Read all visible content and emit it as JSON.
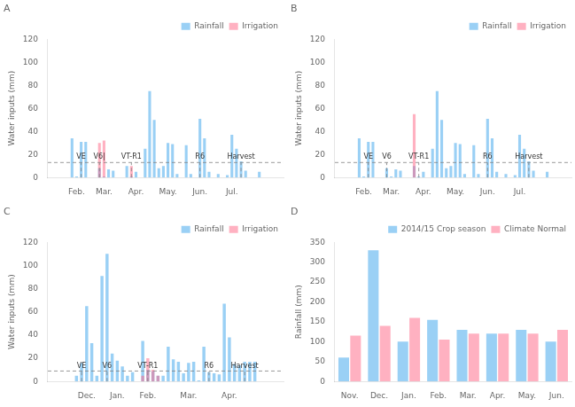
{
  "chart_data": [
    {
      "type": "bar",
      "title": "A",
      "y_label": "Water inputs (mm)",
      "series": [
        {
          "name": "Rainfall",
          "x": [
            1,
            2,
            3,
            4,
            5,
            6,
            7,
            8,
            9,
            10,
            11,
            12,
            13,
            14,
            15,
            16,
            17,
            18,
            19,
            20,
            21,
            22,
            23,
            24,
            25,
            26,
            27,
            28,
            29,
            30,
            31,
            32,
            33,
            34,
            35,
            36,
            37,
            38,
            39,
            40,
            41,
            42
          ],
          "values": [
            34,
            1,
            31,
            31,
            0,
            0,
            8,
            1,
            7,
            6,
            0,
            0,
            10,
            1,
            5,
            0,
            25,
            75,
            50,
            8,
            10,
            30,
            29,
            3,
            0,
            28,
            3,
            0,
            51,
            34,
            5,
            0,
            3,
            0,
            2,
            37,
            25,
            14,
            6,
            0,
            0,
            5
          ]
        },
        {
          "name": "Irrigation",
          "x": [
            7,
            8,
            14,
            15
          ],
          "values": [
            30,
            32,
            10,
            0
          ]
        }
      ],
      "xlim": [
        0,
        43
      ],
      "xticks": [
        {
          "value": 2,
          "label": "Feb."
        },
        {
          "value": 8,
          "label": "Mar."
        },
        {
          "value": 15,
          "label": "Apr."
        },
        {
          "value": 22,
          "label": "May."
        },
        {
          "value": 29,
          "label": "Jun."
        },
        {
          "value": 36,
          "label": "Jul."
        }
      ],
      "ylim": [
        0,
        120
      ],
      "yticks": [
        0,
        20,
        40,
        60,
        80,
        100,
        120
      ],
      "hline": 13,
      "annotations": [
        {
          "x": 3,
          "text": "VE"
        },
        {
          "x": 7,
          "text": "V6|"
        },
        {
          "x": 14,
          "text": "VT-R1"
        },
        {
          "x": 29,
          "text": "R6"
        },
        {
          "x": 38,
          "text": "Harvest"
        }
      ],
      "legend": "upper right",
      "grid": false
    },
    {
      "type": "bar",
      "title": "B",
      "y_label": "Water inputs (mm)",
      "series": [
        {
          "name": "Rainfall",
          "x": [
            1,
            2,
            3,
            4,
            5,
            6,
            7,
            8,
            9,
            10,
            11,
            12,
            13,
            14,
            15,
            16,
            17,
            18,
            19,
            20,
            21,
            22,
            23,
            24,
            25,
            26,
            27,
            28,
            29,
            30,
            31,
            32,
            33,
            34,
            35,
            36,
            37,
            38,
            39,
            40,
            41,
            42
          ],
          "values": [
            34,
            1,
            31,
            31,
            0,
            0,
            8,
            1,
            7,
            6,
            0,
            0,
            10,
            1,
            5,
            0,
            25,
            75,
            50,
            8,
            10,
            30,
            29,
            3,
            0,
            28,
            3,
            0,
            51,
            34,
            5,
            0,
            3,
            0,
            2,
            37,
            25,
            14,
            6,
            0,
            0,
            5
          ]
        },
        {
          "name": "Irrigation",
          "x": [
            13
          ],
          "values": [
            55
          ]
        }
      ],
      "xlim": [
        0,
        43
      ],
      "xticks": [
        {
          "value": 2,
          "label": "Feb."
        },
        {
          "value": 8,
          "label": "Mar."
        },
        {
          "value": 15,
          "label": "Apr."
        },
        {
          "value": 22,
          "label": "May."
        },
        {
          "value": 29,
          "label": "Jun."
        },
        {
          "value": 36,
          "label": "Jul."
        }
      ],
      "ylim": [
        0,
        120
      ],
      "yticks": [
        0,
        20,
        40,
        60,
        80,
        100,
        120
      ],
      "hline": 13,
      "annotations": [
        {
          "x": 3,
          "text": "VE"
        },
        {
          "x": 7,
          "text": "V6"
        },
        {
          "x": 14,
          "text": "VT-R1"
        },
        {
          "x": 29,
          "text": "R6"
        },
        {
          "x": 38,
          "text": "Harvest"
        }
      ],
      "legend": "upper right",
      "grid": false
    },
    {
      "type": "bar",
      "title": "C",
      "y_label": "Water inputs (mm)",
      "series": [
        {
          "name": "Rainfall",
          "x": [
            1,
            2,
            3,
            4,
            5,
            6,
            7,
            8,
            9,
            10,
            11,
            12,
            13,
            14,
            15,
            16,
            17,
            18,
            19,
            20,
            21,
            22,
            23,
            24,
            25,
            26,
            27,
            28,
            29,
            30,
            31,
            32,
            33,
            34,
            35,
            36
          ],
          "values": [
            5,
            16,
            65,
            33,
            5,
            91,
            110,
            24,
            18,
            13,
            5,
            8,
            0,
            35,
            10,
            9,
            5,
            5,
            30,
            19,
            17,
            7,
            16,
            17,
            1,
            30,
            8,
            7,
            6,
            67,
            38,
            15,
            14,
            17,
            17,
            17
          ]
        },
        {
          "name": "Irrigation",
          "x": [
            14,
            15,
            16,
            17
          ],
          "values": [
            5,
            20,
            10,
            5
          ]
        }
      ],
      "xlim": [
        0,
        37
      ],
      "xticks": [
        {
          "value": 3,
          "label": "Dec."
        },
        {
          "value": 9,
          "label": "Jan."
        },
        {
          "value": 15,
          "label": "Feb."
        },
        {
          "value": 23,
          "label": "Mar."
        },
        {
          "value": 31,
          "label": "Apr."
        }
      ],
      "ylim": [
        0,
        120
      ],
      "yticks": [
        0,
        20,
        40,
        60,
        80,
        100,
        120
      ],
      "hline": 9,
      "annotations": [
        {
          "x": 2,
          "text": "VE"
        },
        {
          "x": 7,
          "text": "V6"
        },
        {
          "x": 15,
          "text": "VT-R1"
        },
        {
          "x": 27,
          "text": "R6"
        },
        {
          "x": 34,
          "text": "Harvest"
        }
      ],
      "legend": "upper right",
      "grid": false
    },
    {
      "type": "bar",
      "title": "D",
      "y_label": "Rainfall (mm)",
      "categories": [
        "Nov.",
        "Dec.",
        "Jan.",
        "Feb.",
        "Mar.",
        "Apr.",
        "May.",
        "Jun."
      ],
      "series": [
        {
          "name": "2014/15 Crop season",
          "values": [
            60,
            330,
            100,
            155,
            130,
            120,
            130,
            100
          ]
        },
        {
          "name": "Climate Normal",
          "values": [
            115,
            140,
            160,
            105,
            120,
            120,
            120,
            130
          ]
        }
      ],
      "ylim": [
        0,
        350
      ],
      "yticks": [
        0,
        50,
        100,
        150,
        200,
        250,
        300,
        350
      ],
      "legend": "upper right",
      "grid": false
    }
  ]
}
